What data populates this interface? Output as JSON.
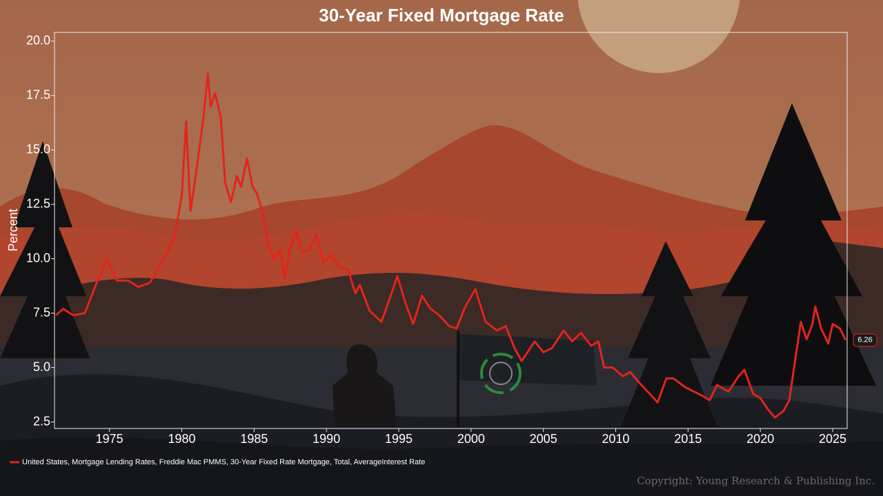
{
  "chart_data": {
    "type": "line",
    "title": "30-Year Fixed Mortgage Rate",
    "y_label": "Percent",
    "xlim": [
      1971.2,
      2026.0
    ],
    "xticks": [
      1975,
      1980,
      1985,
      1990,
      1995,
      2000,
      2005,
      2010,
      2015,
      2020,
      2025
    ],
    "ylim": [
      2.2,
      20.4
    ],
    "yticks": [
      2.5,
      {
        "value": 5,
        "label": "5.0"
      },
      7.5,
      {
        "value": 10,
        "label": "10.0"
      },
      12.5,
      {
        "value": 15,
        "label": "15.0"
      },
      17.5,
      {
        "value": 20,
        "label": "20.0"
      }
    ],
    "grid": false,
    "legend": "bottom-left",
    "x": [
      1971.3,
      1971.8,
      1972.5,
      1973.3,
      1974.0,
      1974.8,
      1975.5,
      1976.3,
      1977.0,
      1977.8,
      1978.5,
      1979.0,
      1979.5,
      1980.0,
      1980.3,
      1980.6,
      1981.0,
      1981.5,
      1981.8,
      1982.0,
      1982.3,
      1982.7,
      1983.0,
      1983.4,
      1983.8,
      1984.1,
      1984.5,
      1984.9,
      1985.2,
      1985.6,
      1986.0,
      1986.4,
      1986.8,
      1987.1,
      1987.5,
      1987.9,
      1988.3,
      1988.8,
      1989.3,
      1989.8,
      1990.3,
      1990.9,
      1991.5,
      1992.0,
      1992.3,
      1993.0,
      1993.8,
      1994.5,
      1994.9,
      1995.5,
      1996.0,
      1996.6,
      1997.2,
      1997.8,
      1998.5,
      1999.0,
      1999.6,
      2000.3,
      2001.0,
      2001.8,
      2002.4,
      2003.0,
      2003.5,
      2004.0,
      2004.4,
      2005.0,
      2005.6,
      2006.4,
      2007.0,
      2007.6,
      2008.3,
      2008.8,
      2009.2,
      2009.8,
      2010.5,
      2011.0,
      2011.5,
      2012.2,
      2012.9,
      2013.5,
      2014.0,
      2014.8,
      2015.4,
      2016.0,
      2016.5,
      2017.0,
      2017.8,
      2018.5,
      2018.9,
      2019.5,
      2020.0,
      2020.5,
      2021.0,
      2021.6,
      2022.0,
      2022.4,
      2022.8,
      2023.2,
      2023.6,
      2023.8,
      2024.2,
      2024.7,
      2025.0,
      2025.5,
      2025.9
    ],
    "series": [
      {
        "name": "United States, Mortgage Lending Rates, Freddie Mac PMMS, 30-Year Fixed Rate Mortgage, Total, AverageInterest Rate",
        "color": "#e3241b",
        "values": [
          7.4,
          7.7,
          7.4,
          7.5,
          8.7,
          10.0,
          9.0,
          9.0,
          8.7,
          8.9,
          9.7,
          10.3,
          11.0,
          12.9,
          16.3,
          12.2,
          14.0,
          16.5,
          18.5,
          17.0,
          17.6,
          16.5,
          13.5,
          12.6,
          13.8,
          13.3,
          14.6,
          13.3,
          13.0,
          12.1,
          10.6,
          10.0,
          10.4,
          9.1,
          10.5,
          11.3,
          10.3,
          10.4,
          11.1,
          9.8,
          10.2,
          9.6,
          9.5,
          8.4,
          8.8,
          7.6,
          7.1,
          8.4,
          9.2,
          7.9,
          7.0,
          8.3,
          7.7,
          7.4,
          6.9,
          6.8,
          7.8,
          8.6,
          7.1,
          6.7,
          6.9,
          5.9,
          5.3,
          5.8,
          6.2,
          5.7,
          5.9,
          6.7,
          6.2,
          6.6,
          6.0,
          6.2,
          5.0,
          5.0,
          4.6,
          4.8,
          4.4,
          3.9,
          3.4,
          4.5,
          4.5,
          4.1,
          3.9,
          3.7,
          3.5,
          4.2,
          3.9,
          4.6,
          4.9,
          3.8,
          3.6,
          3.1,
          2.7,
          3.0,
          3.5,
          5.3,
          7.1,
          6.3,
          7.0,
          7.8,
          6.8,
          6.1,
          7.0,
          6.8,
          6.26
        ]
      }
    ]
  },
  "footer": {
    "copyright": "Copyright: Young Research & Publishing Inc."
  }
}
